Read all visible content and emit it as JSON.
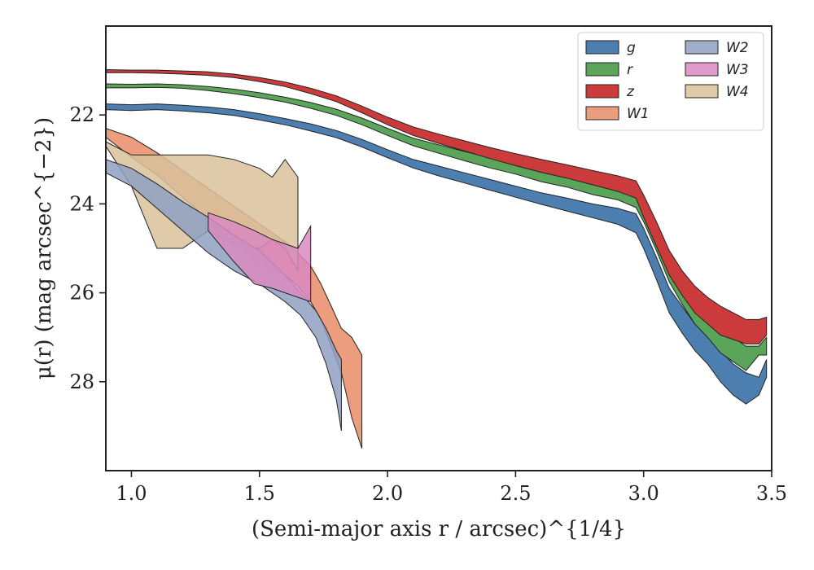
{
  "chart_data": {
    "type": "area",
    "xlabel": "(Semi-major axis r / arcsec)^{1/4}",
    "ylabel": "μ(r) (mag arcsec^{−2})",
    "xlim": [
      0.9,
      3.5
    ],
    "ylim": [
      30.0,
      20.0
    ],
    "x_ticks": [
      1.0,
      1.5,
      2.0,
      2.5,
      3.0,
      3.5
    ],
    "y_ticks": [
      22,
      24,
      26,
      28
    ],
    "grid": false,
    "legend": {
      "placement": "top-right",
      "columns": 2
    },
    "series": [
      {
        "name": "g",
        "color": "#4c7fb0",
        "alpha": 1.0,
        "x": [
          0.9,
          1.0,
          1.1,
          1.2,
          1.3,
          1.4,
          1.5,
          1.6,
          1.7,
          1.8,
          1.9,
          2.0,
          2.1,
          2.2,
          2.3,
          2.4,
          2.5,
          2.6,
          2.7,
          2.8,
          2.9,
          2.97,
          3.0,
          3.05,
          3.1,
          3.15,
          3.2,
          3.25,
          3.3,
          3.35,
          3.4,
          3.45,
          3.48
        ],
        "y_upper": [
          21.75,
          21.77,
          21.75,
          21.78,
          21.82,
          21.88,
          21.97,
          22.08,
          22.2,
          22.35,
          22.55,
          22.78,
          23.0,
          23.15,
          23.3,
          23.45,
          23.6,
          23.75,
          23.87,
          24.0,
          24.1,
          24.22,
          24.55,
          25.2,
          25.9,
          26.3,
          26.7,
          27.0,
          27.3,
          27.6,
          27.8,
          27.9,
          27.5
        ],
        "y_lower": [
          21.88,
          21.9,
          21.88,
          21.91,
          21.95,
          22.01,
          22.11,
          22.22,
          22.36,
          22.51,
          22.72,
          22.96,
          23.19,
          23.37,
          23.53,
          23.69,
          23.85,
          24.01,
          24.16,
          24.31,
          24.46,
          24.65,
          25.0,
          25.7,
          26.45,
          26.9,
          27.3,
          27.6,
          28.0,
          28.3,
          28.5,
          28.3,
          27.9
        ]
      },
      {
        "name": "r",
        "color": "#5aa55a",
        "alpha": 1.0,
        "x": [
          0.9,
          1.0,
          1.1,
          1.2,
          1.3,
          1.4,
          1.5,
          1.6,
          1.7,
          1.8,
          1.9,
          2.0,
          2.1,
          2.2,
          2.3,
          2.4,
          2.5,
          2.6,
          2.7,
          2.8,
          2.9,
          2.97,
          3.0,
          3.05,
          3.1,
          3.15,
          3.2,
          3.25,
          3.3,
          3.35,
          3.4,
          3.45,
          3.48
        ],
        "y_upper": [
          21.3,
          21.31,
          21.3,
          21.32,
          21.36,
          21.42,
          21.5,
          21.6,
          21.72,
          21.87,
          22.07,
          22.3,
          22.52,
          22.67,
          22.82,
          22.96,
          23.1,
          23.25,
          23.37,
          23.5,
          23.6,
          23.72,
          24.0,
          24.65,
          25.35,
          25.8,
          26.2,
          26.5,
          26.8,
          27.0,
          27.2,
          27.2,
          27.0
        ],
        "y_lower": [
          21.39,
          21.39,
          21.38,
          21.4,
          21.45,
          21.52,
          21.61,
          21.71,
          21.85,
          22.01,
          22.22,
          22.46,
          22.69,
          22.86,
          23.03,
          23.19,
          23.33,
          23.5,
          23.62,
          23.79,
          23.91,
          24.08,
          24.4,
          25.05,
          25.75,
          26.25,
          26.7,
          27.0,
          27.35,
          27.55,
          27.75,
          27.4,
          27.4
        ]
      },
      {
        "name": "z",
        "color": "#cc3b3b",
        "alpha": 1.0,
        "x": [
          0.9,
          1.0,
          1.1,
          1.2,
          1.3,
          1.4,
          1.5,
          1.6,
          1.7,
          1.8,
          1.9,
          2.0,
          2.1,
          2.2,
          2.3,
          2.4,
          2.5,
          2.6,
          2.7,
          2.8,
          2.9,
          2.97,
          3.0,
          3.05,
          3.1,
          3.15,
          3.2,
          3.25,
          3.3,
          3.35,
          3.4,
          3.45,
          3.48
        ],
        "y_upper": [
          20.98,
          20.99,
          20.99,
          21.01,
          21.03,
          21.08,
          21.16,
          21.26,
          21.4,
          21.57,
          21.8,
          22.05,
          22.27,
          22.43,
          22.58,
          22.73,
          22.87,
          23.0,
          23.12,
          23.25,
          23.37,
          23.48,
          23.8,
          24.4,
          25.05,
          25.5,
          25.85,
          26.1,
          26.3,
          26.45,
          26.6,
          26.6,
          26.55
        ],
        "y_lower": [
          21.05,
          21.05,
          21.06,
          21.08,
          21.11,
          21.16,
          21.25,
          21.36,
          21.52,
          21.7,
          21.95,
          22.22,
          22.46,
          22.64,
          22.81,
          22.98,
          23.14,
          23.29,
          23.42,
          23.57,
          23.72,
          23.87,
          24.3,
          24.95,
          25.6,
          26.05,
          26.45,
          26.7,
          26.95,
          27.05,
          27.15,
          27.15,
          26.95
        ]
      },
      {
        "name": "W1",
        "color": "#e9926f",
        "alpha": 0.9,
        "x": [
          0.9,
          1.0,
          1.1,
          1.2,
          1.3,
          1.4,
          1.5,
          1.6,
          1.65,
          1.7,
          1.74,
          1.78,
          1.82,
          1.86,
          1.9
        ],
        "y_upper": [
          22.3,
          22.5,
          22.85,
          23.25,
          23.65,
          24.05,
          24.45,
          24.85,
          25.1,
          25.4,
          25.8,
          26.3,
          26.8,
          27.0,
          27.4
        ],
        "y_lower": [
          22.5,
          22.95,
          23.35,
          23.85,
          24.35,
          24.85,
          25.3,
          25.6,
          25.85,
          26.2,
          26.6,
          27.2,
          27.8,
          28.8,
          29.5
        ]
      },
      {
        "name": "W2",
        "color": "#8fa0c3",
        "alpha": 0.85,
        "x": [
          0.9,
          1.0,
          1.1,
          1.2,
          1.3,
          1.4,
          1.5,
          1.6,
          1.66,
          1.72,
          1.76,
          1.8,
          1.82
        ],
        "y_upper": [
          23.0,
          23.2,
          23.55,
          23.95,
          24.3,
          24.7,
          25.05,
          25.6,
          26.0,
          26.4,
          26.8,
          27.3,
          27.5
        ],
        "y_lower": [
          23.3,
          23.6,
          24.1,
          24.6,
          25.1,
          25.5,
          25.8,
          26.2,
          26.5,
          27.0,
          27.6,
          28.4,
          29.1
        ]
      },
      {
        "name": "W3",
        "color": "#d98ac0",
        "alpha": 0.85,
        "x": [
          1.3,
          1.4,
          1.48,
          1.55,
          1.6,
          1.65,
          1.7
        ],
        "y_upper": [
          24.2,
          24.4,
          24.6,
          24.8,
          24.9,
          25.0,
          24.5
        ],
        "y_lower": [
          24.6,
          25.3,
          25.8,
          25.9,
          26.0,
          26.1,
          26.2
        ]
      },
      {
        "name": "W4",
        "color": "#d9c19b",
        "alpha": 0.85,
        "x": [
          0.9,
          1.0,
          1.1,
          1.2,
          1.3,
          1.4,
          1.5,
          1.55,
          1.6,
          1.65
        ],
        "y_upper": [
          22.6,
          22.9,
          22.9,
          22.9,
          22.9,
          23.0,
          23.2,
          23.4,
          23.0,
          23.4
        ],
        "y_lower": [
          22.7,
          23.6,
          25.0,
          25.0,
          24.6,
          24.9,
          25.0,
          24.8,
          25.0,
          25.5
        ]
      }
    ]
  }
}
